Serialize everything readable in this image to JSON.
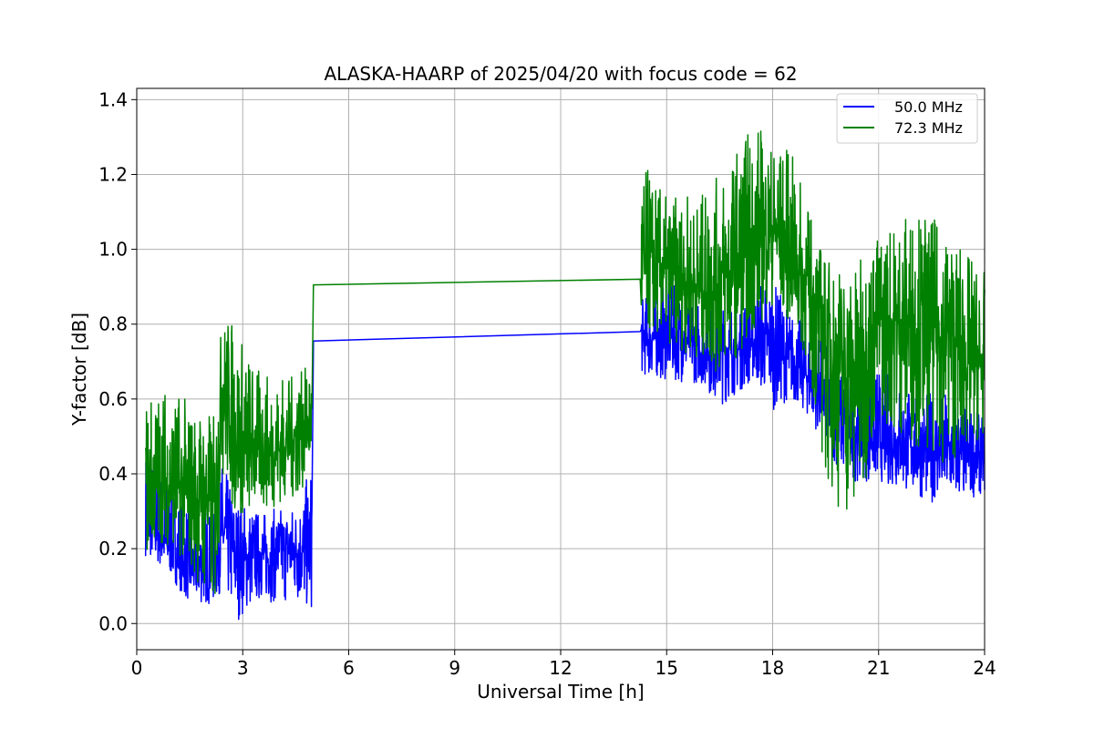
{
  "chart_data": {
    "type": "line",
    "title": "ALASKA-HAARP of 2025/04/20 with focus code = 62",
    "xlabel": "Universal Time [h]",
    "ylabel": "Y-factor [dB]",
    "xlim": [
      0,
      24
    ],
    "ylim": [
      -0.07,
      1.43
    ],
    "xticks": [
      0,
      3,
      6,
      9,
      12,
      15,
      18,
      21,
      24
    ],
    "yticks": [
      0.0,
      0.2,
      0.4,
      0.6,
      0.8,
      1.0,
      1.2,
      1.4
    ],
    "xtick_labels": [
      "0",
      "3",
      "6",
      "9",
      "12",
      "15",
      "18",
      "21",
      "24"
    ],
    "ytick_labels": [
      "0.0",
      "0.2",
      "0.4",
      "0.6",
      "0.8",
      "1.0",
      "1.2",
      "1.4"
    ],
    "grid": true,
    "legend_position": "top-right",
    "series": [
      {
        "name": "50.0 MHz",
        "color": "#0000ff",
        "points": [
          [
            0.25,
            0.28
          ],
          [
            0.5,
            0.25
          ],
          [
            0.75,
            0.22
          ],
          [
            1.0,
            0.2
          ],
          [
            1.25,
            0.17
          ],
          [
            1.5,
            0.14
          ],
          [
            1.75,
            0.15
          ],
          [
            2.0,
            0.16
          ],
          [
            2.2,
            0.17
          ],
          [
            2.4,
            0.24
          ],
          [
            2.6,
            0.23
          ],
          [
            2.8,
            0.18
          ],
          [
            3.0,
            0.16
          ],
          [
            3.25,
            0.18
          ],
          [
            3.5,
            0.19
          ],
          [
            3.75,
            0.17
          ],
          [
            4.0,
            0.19
          ],
          [
            4.25,
            0.2
          ],
          [
            4.5,
            0.2
          ],
          [
            4.75,
            0.19
          ],
          [
            4.95,
            0.2
          ],
          [
            5.0,
            0.755
          ],
          [
            14.25,
            0.78
          ],
          [
            14.5,
            0.76
          ],
          [
            15.0,
            0.77
          ],
          [
            15.5,
            0.76
          ],
          [
            16.0,
            0.73
          ],
          [
            16.5,
            0.74
          ],
          [
            17.0,
            0.73
          ],
          [
            17.5,
            0.75
          ],
          [
            18.0,
            0.74
          ],
          [
            18.5,
            0.7
          ],
          [
            19.0,
            0.66
          ],
          [
            19.5,
            0.6
          ],
          [
            20.0,
            0.55
          ],
          [
            20.5,
            0.5
          ],
          [
            21.0,
            0.49
          ],
          [
            21.5,
            0.48
          ],
          [
            22.0,
            0.47
          ],
          [
            22.5,
            0.46
          ],
          [
            23.0,
            0.46
          ],
          [
            23.5,
            0.45
          ],
          [
            24.0,
            0.45
          ]
        ],
        "envelope": [
          [
            0.25,
            0.18,
            0.48
          ],
          [
            1.0,
            0.12,
            0.38
          ],
          [
            1.5,
            0.05,
            0.33
          ],
          [
            2.25,
            0.05,
            0.3
          ],
          [
            2.4,
            0.1,
            0.44
          ],
          [
            2.75,
            0.0,
            0.35
          ],
          [
            3.5,
            0.06,
            0.3
          ],
          [
            4.5,
            0.05,
            0.32
          ],
          [
            4.95,
            0.03,
            0.42
          ],
          [
            14.3,
            0.66,
            0.87
          ],
          [
            15.0,
            0.65,
            0.91
          ],
          [
            16.0,
            0.64,
            0.88
          ],
          [
            16.5,
            0.58,
            0.84
          ],
          [
            17.5,
            0.65,
            0.93
          ],
          [
            18.0,
            0.57,
            0.92
          ],
          [
            18.5,
            0.6,
            0.84
          ],
          [
            19.0,
            0.55,
            0.8
          ],
          [
            19.5,
            0.48,
            0.75
          ],
          [
            20.0,
            0.38,
            0.66
          ],
          [
            20.5,
            0.38,
            0.67
          ],
          [
            21.0,
            0.38,
            0.7
          ],
          [
            22.0,
            0.34,
            0.62
          ],
          [
            23.0,
            0.31,
            0.62
          ],
          [
            24.0,
            0.35,
            0.55
          ]
        ]
      },
      {
        "name": "72.3 MHz",
        "color": "#008000",
        "points": [
          [
            0.25,
            0.38
          ],
          [
            0.5,
            0.37
          ],
          [
            0.75,
            0.36
          ],
          [
            1.0,
            0.38
          ],
          [
            1.25,
            0.35
          ],
          [
            1.5,
            0.34
          ],
          [
            1.75,
            0.33
          ],
          [
            2.0,
            0.34
          ],
          [
            2.2,
            0.3
          ],
          [
            2.4,
            0.63
          ],
          [
            2.6,
            0.62
          ],
          [
            2.8,
            0.5
          ],
          [
            3.0,
            0.45
          ],
          [
            3.25,
            0.46
          ],
          [
            3.5,
            0.47
          ],
          [
            3.75,
            0.45
          ],
          [
            4.0,
            0.46
          ],
          [
            4.25,
            0.49
          ],
          [
            4.5,
            0.5
          ],
          [
            4.75,
            0.53
          ],
          [
            4.95,
            0.55
          ],
          [
            5.0,
            0.905
          ],
          [
            14.25,
            0.92
          ],
          [
            14.5,
            0.95
          ],
          [
            15.0,
            0.93
          ],
          [
            15.5,
            0.92
          ],
          [
            16.0,
            0.89
          ],
          [
            16.5,
            0.93
          ],
          [
            17.0,
            0.95
          ],
          [
            17.5,
            1.0
          ],
          [
            18.0,
            1.06
          ],
          [
            18.5,
            0.98
          ],
          [
            19.0,
            0.9
          ],
          [
            19.5,
            0.78
          ],
          [
            20.0,
            0.68
          ],
          [
            20.5,
            0.7
          ],
          [
            21.0,
            0.82
          ],
          [
            21.5,
            0.8
          ],
          [
            22.0,
            0.8
          ],
          [
            22.5,
            0.79
          ],
          [
            23.0,
            0.78
          ],
          [
            23.5,
            0.7
          ],
          [
            24.0,
            0.68
          ]
        ],
        "envelope": [
          [
            0.25,
            0.16,
            0.6
          ],
          [
            0.75,
            0.22,
            0.65
          ],
          [
            1.5,
            0.15,
            0.6
          ],
          [
            2.25,
            0.0,
            0.56
          ],
          [
            2.4,
            0.4,
            0.82
          ],
          [
            2.75,
            0.28,
            0.82
          ],
          [
            3.5,
            0.3,
            0.67
          ],
          [
            4.5,
            0.33,
            0.66
          ],
          [
            4.95,
            0.4,
            0.7
          ],
          [
            14.3,
            0.78,
            1.24
          ],
          [
            15.0,
            0.75,
            1.14
          ],
          [
            16.0,
            0.7,
            1.15
          ],
          [
            16.5,
            0.65,
            1.2
          ],
          [
            17.5,
            0.78,
            1.36
          ],
          [
            18.0,
            0.85,
            1.28
          ],
          [
            18.5,
            0.8,
            1.27
          ],
          [
            19.0,
            0.68,
            1.12
          ],
          [
            19.5,
            0.38,
            0.98
          ],
          [
            20.0,
            0.28,
            0.97
          ],
          [
            20.3,
            0.24,
            0.95
          ],
          [
            21.0,
            0.54,
            1.05
          ],
          [
            22.0,
            0.48,
            1.12
          ],
          [
            23.0,
            0.42,
            1.05
          ],
          [
            24.0,
            0.5,
            0.94
          ]
        ]
      }
    ]
  }
}
